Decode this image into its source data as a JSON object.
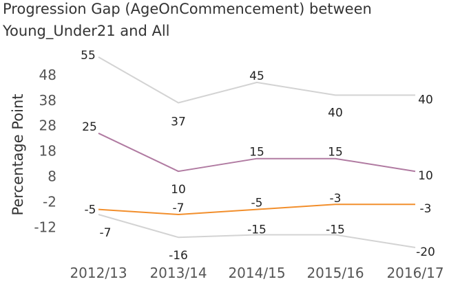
{
  "chart_data": {
    "type": "line",
    "title_line1": "Progression Gap (AgeOnCommencement) between",
    "title_line2": "Young_Under21 and All",
    "ylabel": "Percentage Point",
    "xlabel": "",
    "categories": [
      "2012/13",
      "2013/14",
      "2014/15",
      "2015/16",
      "2016/17"
    ],
    "yticks": [
      48,
      38,
      28,
      18,
      8,
      -2,
      -12
    ],
    "ylim": [
      -22,
      58
    ],
    "grid": false,
    "series": [
      {
        "key": "upper-grey",
        "color": "#d3d3d3",
        "values": [
          55,
          37,
          45,
          40,
          40
        ]
      },
      {
        "key": "purple",
        "color": "#b07aa1",
        "values": [
          25,
          10,
          15,
          15,
          10
        ]
      },
      {
        "key": "orange",
        "color": "#f28e2b",
        "values": [
          -5,
          -7,
          -5,
          -3,
          -3
        ]
      },
      {
        "key": "lower-grey",
        "color": "#d3d3d3",
        "values": [
          -7,
          -16,
          -15,
          -15,
          -20
        ]
      }
    ]
  }
}
